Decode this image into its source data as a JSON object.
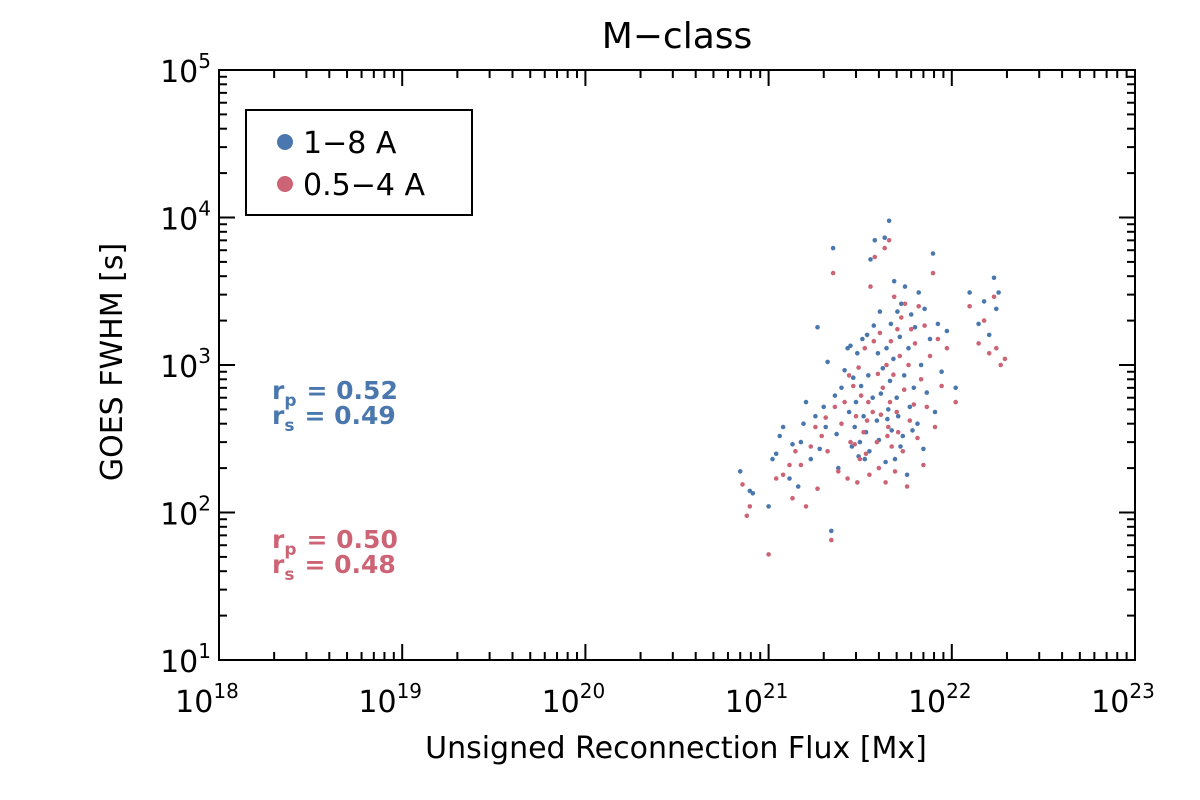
{
  "chart_data": {
    "type": "scatter",
    "title": "M−class",
    "xlabel": "Unsigned Reconnection Flux [Mx]",
    "ylabel": "GOES FWHM [s]",
    "xscale": "log",
    "yscale": "log",
    "xlim": [
      1e+18,
      1e+23
    ],
    "ylim": [
      10,
      100000
    ],
    "x_tick_labels": [
      {
        "base": "10",
        "exp": "18"
      },
      {
        "base": "10",
        "exp": "19"
      },
      {
        "base": "10",
        "exp": "20"
      },
      {
        "base": "10",
        "exp": "21"
      },
      {
        "base": "10",
        "exp": "22"
      },
      {
        "base": "10",
        "exp": "23"
      }
    ],
    "y_tick_labels": [
      {
        "base": "10",
        "exp": "1"
      },
      {
        "base": "10",
        "exp": "2"
      },
      {
        "base": "10",
        "exp": "3"
      },
      {
        "base": "10",
        "exp": "4"
      },
      {
        "base": "10",
        "exp": "5"
      }
    ],
    "legend_position": "top-left",
    "series": [
      {
        "name": "1−8 A",
        "color": "#4a77ad",
        "points": [
          [
            7e+20,
            190
          ],
          [
            7.9e+20,
            140
          ],
          [
            8.2e+20,
            135
          ],
          [
            1e+21,
            110
          ],
          [
            1.05e+21,
            230
          ],
          [
            1.1e+21,
            250
          ],
          [
            1.15e+21,
            330
          ],
          [
            1.2e+21,
            380
          ],
          [
            1.3e+21,
            170
          ],
          [
            1.35e+21,
            290
          ],
          [
            1.45e+21,
            150
          ],
          [
            1.5e+21,
            300
          ],
          [
            1.55e+21,
            400
          ],
          [
            1.6e+21,
            560
          ],
          [
            1.7e+21,
            230
          ],
          [
            1.8e+21,
            450
          ],
          [
            1.85e+21,
            1800
          ],
          [
            1.9e+21,
            270
          ],
          [
            2e+21,
            520
          ],
          [
            2.05e+21,
            380
          ],
          [
            2.1e+21,
            1050
          ],
          [
            2.2e+21,
            75
          ],
          [
            2.25e+21,
            6200
          ],
          [
            2.3e+21,
            620
          ],
          [
            2.35e+21,
            340
          ],
          [
            2.4e+21,
            200
          ],
          [
            2.5e+21,
            700
          ],
          [
            2.6e+21,
            920
          ],
          [
            2.7e+21,
            1300
          ],
          [
            2.75e+21,
            480
          ],
          [
            2.8e+21,
            1350
          ],
          [
            2.85e+21,
            280
          ],
          [
            2.9e+21,
            820
          ],
          [
            3e+21,
            560
          ],
          [
            3.05e+21,
            1200
          ],
          [
            3.1e+21,
            240
          ],
          [
            3.2e+21,
            720
          ],
          [
            3.25e+21,
            1500
          ],
          [
            3.3e+21,
            450
          ],
          [
            3.4e+21,
            350
          ],
          [
            3.45e+21,
            1600
          ],
          [
            3.5e+21,
            850
          ],
          [
            3.55e+21,
            260
          ],
          [
            3.6e+21,
            5200
          ],
          [
            3.7e+21,
            600
          ],
          [
            3.75e+21,
            1850
          ],
          [
            3.8e+21,
            7000
          ],
          [
            3.9e+21,
            420
          ],
          [
            3.95e+21,
            1200
          ],
          [
            4e+21,
            310
          ],
          [
            4.05e+21,
            2300
          ],
          [
            4.1e+21,
            640
          ],
          [
            4.2e+21,
            950
          ],
          [
            4.3e+21,
            7300
          ],
          [
            4.35e+21,
            220
          ],
          [
            4.4e+21,
            1300
          ],
          [
            4.5e+21,
            500
          ],
          [
            4.55e+21,
            9500
          ],
          [
            4.6e+21,
            780
          ],
          [
            4.65e+21,
            1900
          ],
          [
            4.7e+21,
            360
          ],
          [
            4.8e+21,
            1100
          ],
          [
            4.85e+21,
            3700
          ],
          [
            4.9e+21,
            230
          ],
          [
            5e+21,
            600
          ],
          [
            5.05e+21,
            2300
          ],
          [
            5.1e+21,
            450
          ],
          [
            5.2e+21,
            1550
          ],
          [
            5.3e+21,
            2600
          ],
          [
            5.4e+21,
            330
          ],
          [
            5.5e+21,
            850
          ],
          [
            5.55e+21,
            3400
          ],
          [
            5.7e+21,
            180
          ],
          [
            5.8e+21,
            1300
          ],
          [
            5.9e+21,
            520
          ],
          [
            6e+21,
            2200
          ],
          [
            6.2e+21,
            700
          ],
          [
            6.3e+21,
            1800
          ],
          [
            6.5e+21,
            400
          ],
          [
            6.6e+21,
            3100
          ],
          [
            6.8e+21,
            1000
          ],
          [
            7e+21,
            270
          ],
          [
            7.1e+21,
            2400
          ],
          [
            7.3e+21,
            650
          ],
          [
            7.6e+21,
            1500
          ],
          [
            7.9e+21,
            5700
          ],
          [
            8.1e+21,
            480
          ],
          [
            8.4e+21,
            1900
          ],
          [
            8.8e+21,
            900
          ],
          [
            9.4e+21,
            1700
          ],
          [
            1.05e+22,
            700
          ],
          [
            1.25e+22,
            3100
          ],
          [
            1.4e+22,
            1900
          ],
          [
            1.5e+22,
            2700
          ],
          [
            1.6e+22,
            1600
          ],
          [
            1.7e+22,
            3900
          ],
          [
            1.75e+22,
            2400
          ],
          [
            1.8e+22,
            3100
          ],
          [
            3.35e+21,
            230
          ],
          [
            4.45e+21,
            430
          ],
          [
            3.15e+21,
            300
          ],
          [
            2.95e+21,
            380
          ],
          [
            5.25e+21,
            280
          ],
          [
            6.1e+21,
            360
          ]
        ]
      },
      {
        "name": "0.5−4 A",
        "color": "#cd6475",
        "points": [
          [
            7.2e+20,
            155
          ],
          [
            7.6e+20,
            95
          ],
          [
            7.9e+20,
            110
          ],
          [
            1e+21,
            52
          ],
          [
            1.1e+21,
            170
          ],
          [
            1.2e+21,
            180
          ],
          [
            1.3e+21,
            210
          ],
          [
            1.35e+21,
            125
          ],
          [
            1.4e+21,
            260
          ],
          [
            1.5e+21,
            210
          ],
          [
            1.6e+21,
            110
          ],
          [
            1.7e+21,
            280
          ],
          [
            1.8e+21,
            380
          ],
          [
            1.85e+21,
            145
          ],
          [
            1.95e+21,
            330
          ],
          [
            2.05e+21,
            440
          ],
          [
            2.1e+21,
            260
          ],
          [
            2.2e+21,
            65
          ],
          [
            2.25e+21,
            4200
          ],
          [
            2.3e+21,
            520
          ],
          [
            2.4e+21,
            190
          ],
          [
            2.5e+21,
            400
          ],
          [
            2.6e+21,
            560
          ],
          [
            2.7e+21,
            170
          ],
          [
            2.75e+21,
            850
          ],
          [
            2.8e+21,
            300
          ],
          [
            2.9e+21,
            720
          ],
          [
            3e+21,
            450
          ],
          [
            3.05e+21,
            160
          ],
          [
            3.1e+21,
            960
          ],
          [
            3.2e+21,
            620
          ],
          [
            3.3e+21,
            350
          ],
          [
            3.35e+21,
            1300
          ],
          [
            3.4e+21,
            250
          ],
          [
            3.5e+21,
            560
          ],
          [
            3.55e+21,
            180
          ],
          [
            3.6e+21,
            3400
          ],
          [
            3.7e+21,
            480
          ],
          [
            3.75e+21,
            1450
          ],
          [
            3.8e+21,
            5400
          ],
          [
            3.9e+21,
            300
          ],
          [
            3.95e+21,
            870
          ],
          [
            4e+21,
            200
          ],
          [
            4.05e+21,
            1650
          ],
          [
            4.1e+21,
            460
          ],
          [
            4.2e+21,
            700
          ],
          [
            4.3e+21,
            6200
          ],
          [
            4.35e+21,
            160
          ],
          [
            4.4e+21,
            1000
          ],
          [
            4.5e+21,
            380
          ],
          [
            4.55e+21,
            7000
          ],
          [
            4.6e+21,
            560
          ],
          [
            4.65e+21,
            1450
          ],
          [
            4.7e+21,
            280
          ],
          [
            4.8e+21,
            860
          ],
          [
            4.85e+21,
            2900
          ],
          [
            4.9e+21,
            190
          ],
          [
            5e+21,
            480
          ],
          [
            5.05e+21,
            1750
          ],
          [
            5.1e+21,
            350
          ],
          [
            5.2e+21,
            1150
          ],
          [
            5.3e+21,
            2100
          ],
          [
            5.4e+21,
            260
          ],
          [
            5.5e+21,
            680
          ],
          [
            5.55e+21,
            2600
          ],
          [
            5.7e+21,
            150
          ],
          [
            5.8e+21,
            1000
          ],
          [
            5.9e+21,
            420
          ],
          [
            6e+21,
            1750
          ],
          [
            6.2e+21,
            540
          ],
          [
            6.3e+21,
            1400
          ],
          [
            6.5e+21,
            320
          ],
          [
            6.6e+21,
            2500
          ],
          [
            6.8e+21,
            800
          ],
          [
            7e+21,
            210
          ],
          [
            7.1e+21,
            1850
          ],
          [
            7.3e+21,
            520
          ],
          [
            7.6e+21,
            1150
          ],
          [
            7.9e+21,
            4200
          ],
          [
            8.1e+21,
            380
          ],
          [
            8.4e+21,
            1500
          ],
          [
            8.8e+21,
            720
          ],
          [
            9.4e+21,
            1300
          ],
          [
            1.05e+22,
            560
          ],
          [
            1.25e+22,
            2500
          ],
          [
            1.4e+22,
            1400
          ],
          [
            1.5e+22,
            2000
          ],
          [
            1.6e+22,
            1200
          ],
          [
            1.7e+22,
            2900
          ],
          [
            1.75e+22,
            1300
          ],
          [
            1.85e+22,
            1000
          ],
          [
            1.95e+22,
            1100
          ],
          [
            3.45e+21,
            420
          ],
          [
            4.45e+21,
            330
          ],
          [
            3.15e+21,
            230
          ],
          [
            2.95e+21,
            290
          ]
        ]
      }
    ],
    "annotations": [
      {
        "series": "1−8 A",
        "color": "#4a77ad",
        "lines": [
          {
            "sym": "r",
            "sub": "p",
            "text": "= 0.52"
          },
          {
            "sym": "r",
            "sub": "s",
            "text": "= 0.49"
          }
        ]
      },
      {
        "series": "0.5−4 A",
        "color": "#cd6475",
        "lines": [
          {
            "sym": "r",
            "sub": "p",
            "text": "= 0.50"
          },
          {
            "sym": "r",
            "sub": "s",
            "text": "= 0.48"
          }
        ]
      }
    ]
  }
}
